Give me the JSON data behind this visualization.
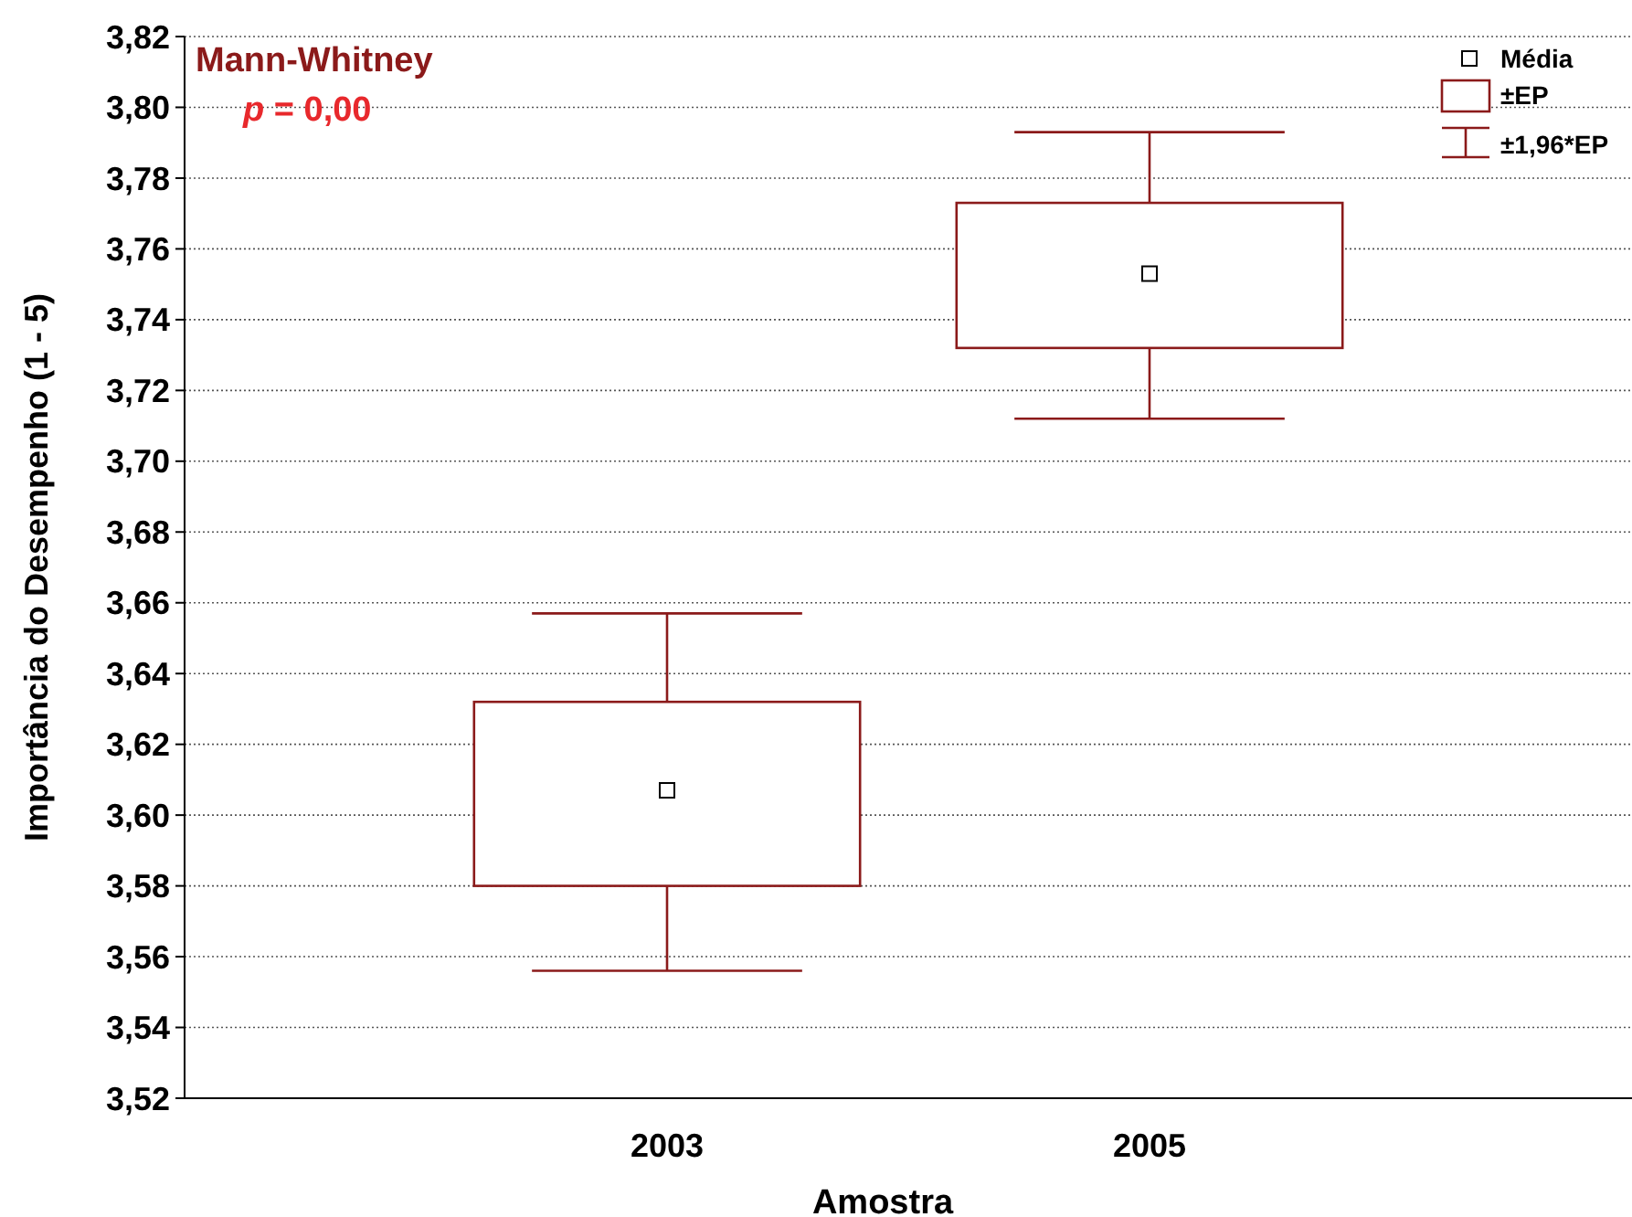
{
  "chart_data": {
    "type": "box",
    "xlabel": "Amostra",
    "ylabel": "Importância do Desempenho (1 - 5)",
    "categories": [
      "2003",
      "2005"
    ],
    "series": [
      {
        "name": "±EP",
        "color": "#8b1a1a",
        "boxes": [
          {
            "low": 3.556,
            "q1": 3.58,
            "q3": 3.632,
            "high": 3.657
          },
          {
            "low": 3.712,
            "q1": 3.732,
            "q3": 3.773,
            "high": 3.793
          }
        ]
      },
      {
        "name": "Média",
        "type": "scatter",
        "values": [
          3.607,
          3.753
        ],
        "color": "#000000",
        "marker": "square"
      }
    ],
    "ylim": [
      3.52,
      3.82
    ],
    "yticks": [
      {
        "value": 3.52,
        "label": "3,52"
      },
      {
        "value": 3.54,
        "label": "3,54"
      },
      {
        "value": 3.56,
        "label": "3,56"
      },
      {
        "value": 3.58,
        "label": "3,58"
      },
      {
        "value": 3.6,
        "label": "3,60"
      },
      {
        "value": 3.62,
        "label": "3,62"
      },
      {
        "value": 3.64,
        "label": "3,64"
      },
      {
        "value": 3.66,
        "label": "3,66"
      },
      {
        "value": 3.68,
        "label": "3,68"
      },
      {
        "value": 3.7,
        "label": "3,70"
      },
      {
        "value": 3.72,
        "label": "3,72"
      },
      {
        "value": 3.74,
        "label": "3,74"
      },
      {
        "value": 3.76,
        "label": "3,76"
      },
      {
        "value": 3.78,
        "label": "3,78"
      },
      {
        "value": 3.8,
        "label": "3,80"
      },
      {
        "value": 3.82,
        "label": "3,82"
      }
    ],
    "grid": "y",
    "legend": "top right",
    "annotations": [
      "Mann-Whitney",
      "p = 0,00",
      "±1,96*EP"
    ]
  }
}
